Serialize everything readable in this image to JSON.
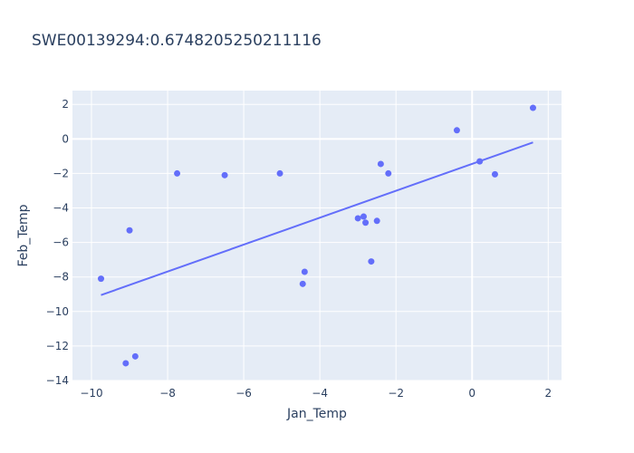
{
  "chart_data": {
    "type": "scatter",
    "title": "SWE00139294:0.6748205250211116",
    "xlabel": "Jan_Temp",
    "ylabel": "Feb_Temp",
    "xlim": [
      -10.5,
      2.35
    ],
    "ylim": [
      -14,
      2.8
    ],
    "xticks": [
      -10,
      -8,
      -6,
      -4,
      -2,
      0,
      2
    ],
    "yticks": [
      -14,
      -12,
      -10,
      -8,
      -6,
      -4,
      -2,
      0,
      2
    ],
    "xtick_labels": [
      "−10",
      "−8",
      "−6",
      "−4",
      "−2",
      "0",
      "2"
    ],
    "ytick_labels": [
      "−14",
      "−12",
      "−10",
      "−8",
      "−6",
      "−4",
      "−2",
      "0",
      "2"
    ],
    "grid": true,
    "legend": "none",
    "colors": {
      "points": "#636efa",
      "trend": "#636efa",
      "plot_bg": "#e5ecf6",
      "grid": "#ffffff",
      "text": "#2a3f5f"
    },
    "series": [
      {
        "kind": "markers",
        "x": [
          -9.75,
          -9.1,
          -9.0,
          -8.85,
          -7.75,
          -6.5,
          -5.05,
          -4.45,
          -4.4,
          -3.0,
          -2.85,
          -2.8,
          -2.65,
          -2.5,
          -2.4,
          -2.2,
          -0.4,
          0.2,
          0.6,
          1.6
        ],
        "y": [
          -8.1,
          -13.0,
          -5.3,
          -12.6,
          -2.0,
          -2.1,
          -2.0,
          -8.4,
          -7.7,
          -4.6,
          -4.5,
          -4.85,
          -7.1,
          -4.75,
          -1.45,
          -2.0,
          0.5,
          -1.3,
          -2.05,
          1.8
        ]
      },
      {
        "kind": "trendline",
        "x": [
          -9.75,
          1.6
        ],
        "y": [
          -9.05,
          -0.2
        ]
      }
    ]
  }
}
